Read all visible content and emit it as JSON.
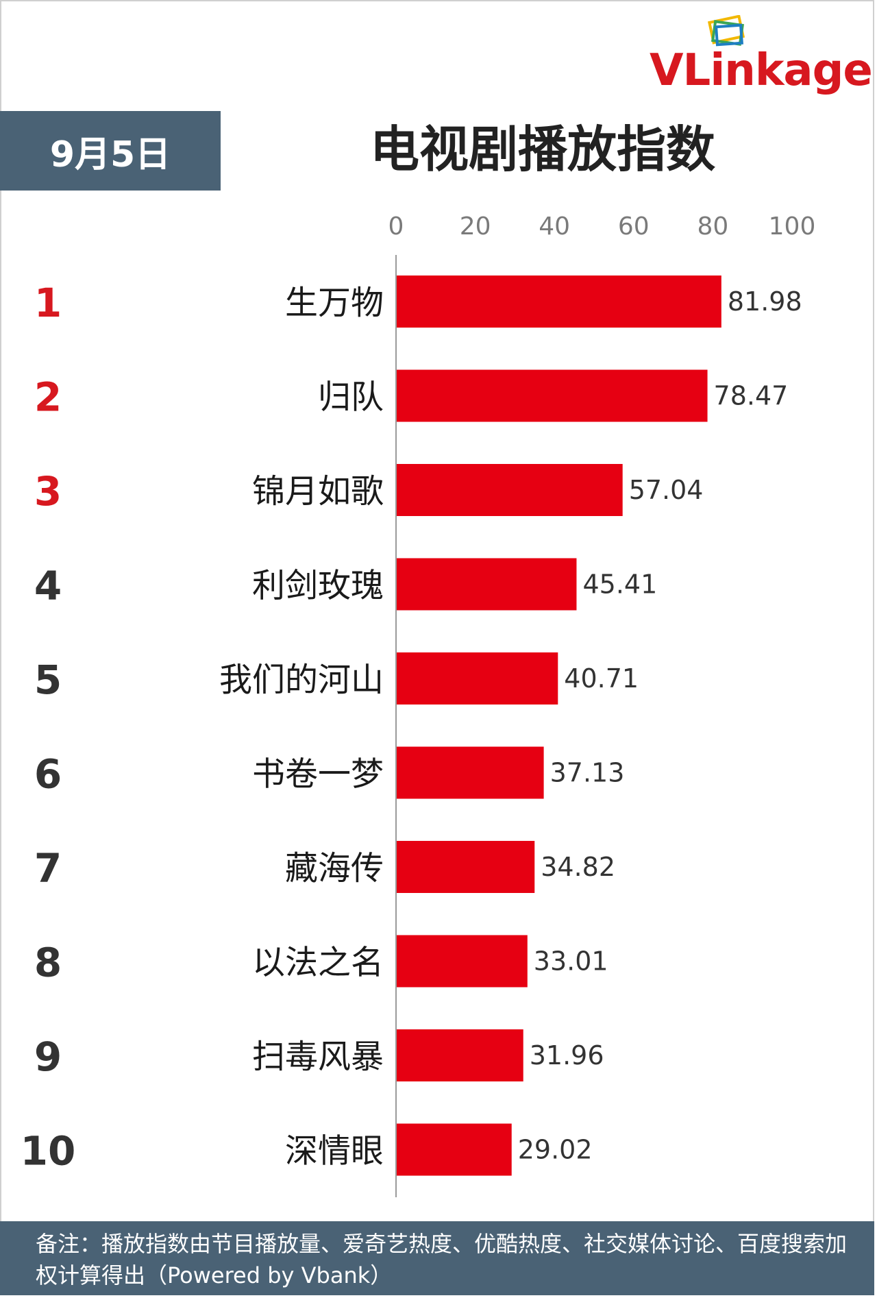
{
  "logo": {
    "text_a": "VLink",
    "text_b": "age"
  },
  "date": "9月5日",
  "title": "电视剧播放指数",
  "footer_note": "备注：播放指数由节目播放量、爱奇艺热度、优酷热度、社交媒体讨论、百度搜索加权计算得出（Powered by Vbank）",
  "colors": {
    "bar": "#e60012",
    "rank_top": "#d7181f",
    "rank_other": "#333333",
    "header_bg": "#4a6275"
  },
  "chart_data": {
    "type": "bar",
    "orientation": "horizontal",
    "title": "电视剧播放指数",
    "xlim": [
      0,
      100
    ],
    "x_ticks": [
      "0",
      "20",
      "40",
      "60",
      "80",
      "100"
    ],
    "ranks": [
      "1",
      "2",
      "3",
      "4",
      "5",
      "6",
      "7",
      "8",
      "9",
      "10"
    ],
    "categories": [
      "生万物",
      "归队",
      "锦月如歌",
      "利剑玫瑰",
      "我们的河山",
      "书卷一梦",
      "藏海传",
      "以法之名",
      "扫毒风暴",
      "深情眼"
    ],
    "values": [
      81.98,
      78.47,
      57.04,
      45.41,
      40.71,
      37.13,
      34.82,
      33.01,
      31.96,
      29.02
    ],
    "value_labels": [
      "81.98",
      "78.47",
      "57.04",
      "45.41",
      "40.71",
      "37.13",
      "34.82",
      "33.01",
      "31.96",
      "29.02"
    ],
    "grid": false
  }
}
